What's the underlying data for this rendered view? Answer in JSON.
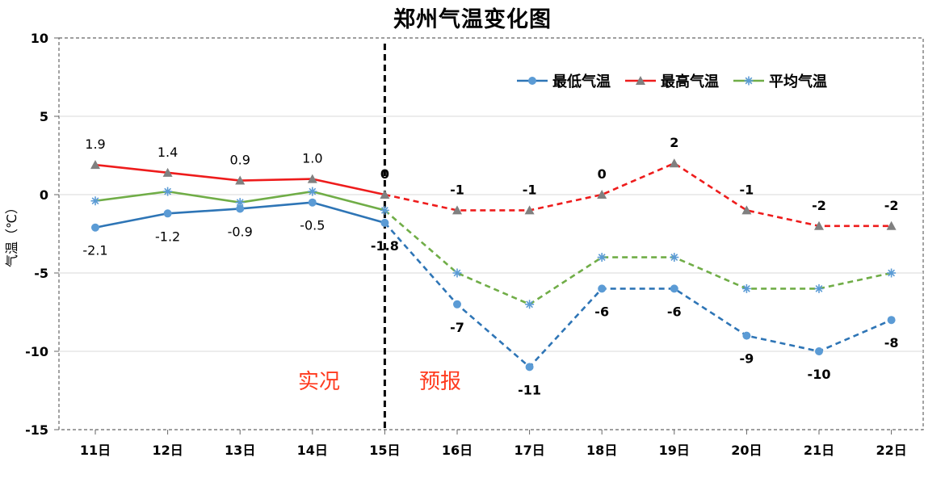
{
  "chart_data": {
    "type": "line",
    "title": "郑州气温变化图",
    "ylabel": "气温（℃）",
    "xlabel": "",
    "ylim": [
      -15,
      10
    ],
    "yticks": [
      10,
      5,
      0,
      -5,
      -10,
      -15
    ],
    "categories": [
      "11日",
      "12日",
      "13日",
      "14日",
      "15日",
      "16日",
      "17日",
      "18日",
      "19日",
      "20日",
      "21日",
      "22日"
    ],
    "split_index": 4,
    "regions": {
      "observed": "实况",
      "forecast": "预报"
    },
    "region_color": "#ff3b1f",
    "grid": true,
    "legend_position": "top-right",
    "series": [
      {
        "name": "最低气温",
        "color": "#2e75b6",
        "marker_color": "#5b9bd5",
        "marker": "circle",
        "values": [
          -2.1,
          -1.2,
          -0.9,
          -0.5,
          -1.8,
          -7,
          -11,
          -6,
          -6,
          -9,
          -10,
          -8
        ],
        "labels": [
          "-2.1",
          "-1.2",
          "-0.9",
          "-0.5",
          "-1.8",
          "-7",
          "-11",
          "-6",
          "-6",
          "-9",
          "-10",
          "-8"
        ],
        "label_pos": "below"
      },
      {
        "name": "最高气温",
        "color": "#ee1c1c",
        "marker_color": "#808080",
        "marker": "triangle",
        "values": [
          1.9,
          1.4,
          0.9,
          1.0,
          0,
          -1,
          -1,
          0,
          2,
          -1,
          -2,
          -2
        ],
        "labels": [
          "1.9",
          "1.4",
          "0.9",
          "1.0",
          "0",
          "-1",
          "-1",
          "0",
          "2",
          "-1",
          "-2",
          "-2"
        ],
        "label_pos": "above"
      },
      {
        "name": "平均气温",
        "color": "#70ad47",
        "marker_color": "#5b9bd5",
        "marker": "star",
        "values": [
          -0.4,
          0.2,
          -0.5,
          0.2,
          -1.0,
          -5,
          -7,
          -4,
          -4,
          -6,
          -6,
          -5
        ],
        "labels": [],
        "label_pos": "none"
      }
    ]
  }
}
